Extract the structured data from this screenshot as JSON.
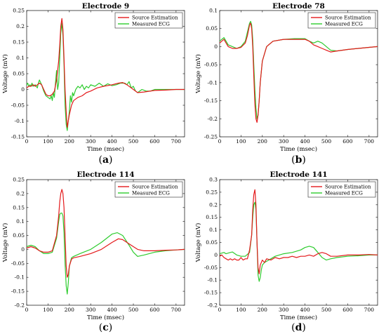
{
  "chart_data": [
    {
      "type": "line",
      "panel_label": "a",
      "title": "Electrode 9",
      "xlabel": "Time (msec)",
      "ylabel": "Voltage (mV)",
      "xlim": [
        0,
        740
      ],
      "ylim": [
        -0.15,
        0.25
      ],
      "xticks": [
        0,
        100,
        200,
        300,
        400,
        500,
        600,
        700
      ],
      "yticks": [
        -0.15,
        -0.1,
        -0.05,
        0,
        0.05,
        0.1,
        0.15,
        0.2,
        0.25
      ],
      "yticklabels": [
        "-0.15",
        "-0.1",
        "-0.05",
        "0",
        "0.05",
        "0.1",
        "0.15",
        "0.2",
        "0.25"
      ],
      "legend": "top-right",
      "series": [
        {
          "name": "Source Estimation",
          "color": "#e41a1c",
          "x": [
            0,
            10,
            20,
            30,
            40,
            50,
            60,
            70,
            80,
            90,
            100,
            110,
            120,
            130,
            140,
            150,
            155,
            160,
            165,
            170,
            175,
            180,
            185,
            190,
            195,
            200,
            210,
            220,
            240,
            260,
            280,
            300,
            330,
            360,
            400,
            430,
            450,
            470,
            500,
            520,
            550,
            600,
            650,
            700,
            740
          ],
          "y": [
            0.005,
            0.01,
            0.01,
            0.015,
            0.01,
            0.015,
            0.02,
            0.015,
            0,
            -0.015,
            -0.02,
            -0.02,
            -0.015,
            -0.005,
            0.03,
            0.09,
            0.14,
            0.2,
            0.225,
            0.19,
            0.1,
            0.0,
            -0.07,
            -0.12,
            -0.1,
            -0.08,
            -0.05,
            -0.035,
            -0.025,
            -0.02,
            -0.01,
            -0.005,
            0.005,
            0.01,
            0.015,
            0.02,
            0.022,
            0.015,
            0.0,
            -0.01,
            -0.008,
            -0.003,
            -0.002,
            0,
            0
          ]
        },
        {
          "name": "Measured ECG",
          "color": "#2ecc2e",
          "x": [
            0,
            5,
            10,
            15,
            20,
            25,
            30,
            40,
            50,
            55,
            60,
            70,
            80,
            90,
            100,
            110,
            115,
            120,
            125,
            130,
            135,
            140,
            145,
            150,
            155,
            160,
            165,
            170,
            175,
            180,
            185,
            190,
            195,
            200,
            205,
            210,
            215,
            220,
            230,
            240,
            250,
            260,
            270,
            280,
            290,
            300,
            320,
            340,
            360,
            380,
            400,
            420,
            440,
            460,
            470,
            480,
            490,
            500,
            510,
            520,
            540,
            560,
            580,
            600,
            650,
            700,
            740
          ],
          "y": [
            0.015,
            0.02,
            0.01,
            0.015,
            0.01,
            0.02,
            0.01,
            0.015,
            0.005,
            0.02,
            0.03,
            0.015,
            -0.005,
            -0.02,
            -0.025,
            -0.03,
            -0.02,
            -0.035,
            -0.01,
            -0.025,
            0.02,
            0.06,
            0.0,
            0.02,
            0.1,
            0.18,
            0.21,
            0.17,
            0.08,
            -0.05,
            -0.11,
            -0.13,
            -0.1,
            -0.07,
            -0.02,
            -0.04,
            -0.01,
            -0.02,
            0.0,
            0.01,
            0.005,
            0.015,
            0.0,
            0.01,
            0.005,
            0.015,
            0.01,
            0.02,
            0.01,
            0.018,
            0.012,
            0.015,
            0.02,
            0.02,
            0.015,
            0.025,
            0.005,
            0.01,
            -0.005,
            -0.01,
            0.0,
            -0.005,
            -0.005,
            0.0,
            0,
            0,
            0
          ]
        }
      ]
    },
    {
      "type": "line",
      "panel_label": "b",
      "title": "Electrode 78",
      "xlabel": "Time (msec)",
      "ylabel": "Voltage (mV)",
      "xlim": [
        0,
        740
      ],
      "ylim": [
        -0.25,
        0.1
      ],
      "xticks": [
        0,
        100,
        200,
        300,
        400,
        500,
        600,
        700
      ],
      "yticks": [
        -0.25,
        -0.2,
        -0.15,
        -0.1,
        -0.05,
        0,
        0.05,
        0.1
      ],
      "yticklabels": [
        "-0.25",
        "-0.2",
        "-0.15",
        "-0.1",
        "-0.05",
        "0",
        "0.05",
        "0.1"
      ],
      "legend": "top-right",
      "series": [
        {
          "name": "Source Estimation",
          "color": "#e41a1c",
          "x": [
            0,
            10,
            20,
            30,
            40,
            60,
            80,
            100,
            120,
            130,
            140,
            145,
            150,
            155,
            160,
            165,
            170,
            175,
            180,
            185,
            190,
            200,
            220,
            250,
            300,
            350,
            400,
            420,
            440,
            460,
            480,
            500,
            520,
            550,
            600,
            650,
            700,
            740
          ],
          "y": [
            0.01,
            0.015,
            0.02,
            0.01,
            0.0,
            -0.005,
            -0.005,
            -0.002,
            0.01,
            0.03,
            0.06,
            0.065,
            0.05,
            0.0,
            -0.08,
            -0.16,
            -0.2,
            -0.21,
            -0.19,
            -0.15,
            -0.1,
            -0.04,
            0.0,
            0.015,
            0.02,
            0.02,
            0.02,
            0.015,
            0.005,
            0.0,
            -0.005,
            -0.01,
            -0.015,
            -0.012,
            -0.008,
            -0.005,
            -0.002,
            0
          ]
        },
        {
          "name": "Measured ECG",
          "color": "#2ecc2e",
          "x": [
            0,
            10,
            20,
            30,
            40,
            60,
            80,
            100,
            120,
            130,
            140,
            145,
            150,
            155,
            160,
            165,
            170,
            175,
            180,
            185,
            190,
            200,
            220,
            250,
            300,
            350,
            400,
            420,
            440,
            460,
            480,
            500,
            520,
            550,
            600,
            650,
            700,
            740
          ],
          "y": [
            0.015,
            0.02,
            0.025,
            0.015,
            0.005,
            0.0,
            -0.005,
            0.0,
            0.015,
            0.04,
            0.065,
            0.07,
            0.06,
            0.02,
            -0.05,
            -0.12,
            -0.17,
            -0.2,
            -0.19,
            -0.15,
            -0.1,
            -0.04,
            0.0,
            0.015,
            0.02,
            0.022,
            0.022,
            0.015,
            0.01,
            0.015,
            0.01,
            0.0,
            -0.01,
            -0.012,
            -0.008,
            -0.005,
            -0.002,
            0
          ]
        }
      ]
    },
    {
      "type": "line",
      "panel_label": "c",
      "title": "Electrode 114",
      "xlabel": "Time (msec)",
      "ylabel": "Voltage (mV)",
      "xlim": [
        0,
        740
      ],
      "ylim": [
        -0.2,
        0.25
      ],
      "xticks": [
        0,
        100,
        200,
        300,
        400,
        500,
        600,
        700
      ],
      "yticks": [
        -0.2,
        -0.15,
        -0.1,
        -0.05,
        0,
        0.05,
        0.1,
        0.15,
        0.2,
        0.25
      ],
      "yticklabels": [
        "-0.2",
        "-0.15",
        "-0.1",
        "-0.05",
        "0",
        "0.05",
        "0.1",
        "0.15",
        "0.2",
        "0.25"
      ],
      "legend": "top-right",
      "series": [
        {
          "name": "Source Estimation",
          "color": "#e41a1c",
          "x": [
            0,
            20,
            40,
            60,
            80,
            100,
            120,
            140,
            150,
            155,
            160,
            165,
            170,
            175,
            180,
            185,
            190,
            195,
            200,
            210,
            220,
            250,
            300,
            350,
            400,
            430,
            450,
            480,
            500,
            520,
            550,
            600,
            650,
            700,
            740
          ],
          "y": [
            0.005,
            0.01,
            0.005,
            -0.005,
            -0.01,
            -0.01,
            -0.005,
            0.05,
            0.12,
            0.17,
            0.2,
            0.215,
            0.2,
            0.15,
            0.05,
            -0.06,
            -0.1,
            -0.09,
            -0.06,
            -0.035,
            -0.03,
            -0.025,
            -0.015,
            0.0,
            0.025,
            0.038,
            0.035,
            0.02,
            0.01,
            0.0,
            -0.005,
            -0.005,
            -0.003,
            -0.002,
            0
          ]
        },
        {
          "name": "Measured ECG",
          "color": "#2ecc2e",
          "x": [
            0,
            20,
            40,
            60,
            80,
            100,
            120,
            140,
            150,
            155,
            160,
            165,
            170,
            175,
            180,
            185,
            190,
            195,
            200,
            210,
            220,
            250,
            300,
            350,
            400,
            425,
            450,
            480,
            500,
            520,
            550,
            600,
            650,
            700,
            740
          ],
          "y": [
            0.01,
            0.015,
            0.01,
            -0.005,
            -0.015,
            -0.015,
            -0.01,
            0.04,
            0.1,
            0.125,
            0.13,
            0.13,
            0.12,
            0.06,
            -0.05,
            -0.13,
            -0.16,
            -0.12,
            -0.06,
            -0.03,
            -0.025,
            -0.015,
            0.0,
            0.025,
            0.055,
            0.06,
            0.05,
            0.015,
            -0.01,
            -0.025,
            -0.02,
            -0.01,
            -0.005,
            -0.002,
            0
          ]
        }
      ]
    },
    {
      "type": "line",
      "panel_label": "d",
      "title": "Electrode 141",
      "xlabel": "Time (msec)",
      "ylabel": "Voltage (mV)",
      "xlim": [
        0,
        740
      ],
      "ylim": [
        -0.2,
        0.3
      ],
      "xticks": [
        0,
        100,
        200,
        300,
        400,
        500,
        600,
        700
      ],
      "yticks": [
        -0.2,
        -0.15,
        -0.1,
        -0.05,
        0,
        0.05,
        0.1,
        0.15,
        0.2,
        0.25,
        0.3
      ],
      "yticklabels": [
        "-0.2",
        "-0.15",
        "-0.1",
        "-0.05",
        "0",
        "0.05",
        "0.1",
        "0.15",
        "0.2",
        "0.25",
        "0.3"
      ],
      "legend": "top-right",
      "series": [
        {
          "name": "Source Estimation",
          "color": "#e41a1c",
          "x": [
            0,
            10,
            20,
            30,
            40,
            50,
            60,
            70,
            80,
            90,
            100,
            110,
            120,
            130,
            140,
            150,
            155,
            160,
            165,
            170,
            175,
            180,
            185,
            190,
            200,
            210,
            220,
            240,
            260,
            280,
            300,
            320,
            340,
            360,
            380,
            400,
            420,
            440,
            460,
            480,
            500,
            520,
            550,
            600,
            650,
            700,
            740
          ],
          "y": [
            -0.005,
            0.0,
            -0.01,
            -0.015,
            -0.02,
            -0.015,
            -0.02,
            -0.015,
            -0.02,
            -0.02,
            -0.01,
            -0.02,
            -0.015,
            -0.015,
            0.02,
            0.08,
            0.18,
            0.24,
            0.26,
            0.2,
            0.05,
            -0.05,
            -0.075,
            -0.04,
            -0.02,
            -0.03,
            -0.015,
            -0.02,
            -0.01,
            -0.015,
            -0.01,
            -0.01,
            -0.005,
            -0.01,
            -0.005,
            -0.005,
            0.0,
            -0.005,
            0.005,
            0.01,
            0.005,
            -0.005,
            -0.005,
            0.0,
            0.0,
            0.002,
            0
          ]
        },
        {
          "name": "Measured ECG",
          "color": "#2ecc2e",
          "x": [
            0,
            20,
            30,
            50,
            60,
            80,
            100,
            120,
            140,
            150,
            155,
            160,
            165,
            170,
            175,
            180,
            185,
            190,
            195,
            200,
            210,
            220,
            240,
            260,
            300,
            340,
            380,
            400,
            420,
            440,
            460,
            480,
            500,
            520,
            550,
            600,
            650,
            700,
            740
          ],
          "y": [
            0.005,
            0.01,
            0.005,
            0.01,
            0.012,
            0.0,
            -0.005,
            -0.005,
            0.01,
            0.08,
            0.15,
            0.2,
            0.21,
            0.18,
            0.05,
            -0.08,
            -0.105,
            -0.09,
            -0.06,
            -0.04,
            -0.03,
            -0.025,
            -0.015,
            -0.005,
            0.005,
            0.01,
            0.02,
            0.03,
            0.035,
            0.03,
            0.01,
            -0.01,
            -0.02,
            -0.015,
            -0.01,
            -0.005,
            -0.003,
            0.0,
            0
          ]
        }
      ]
    }
  ]
}
